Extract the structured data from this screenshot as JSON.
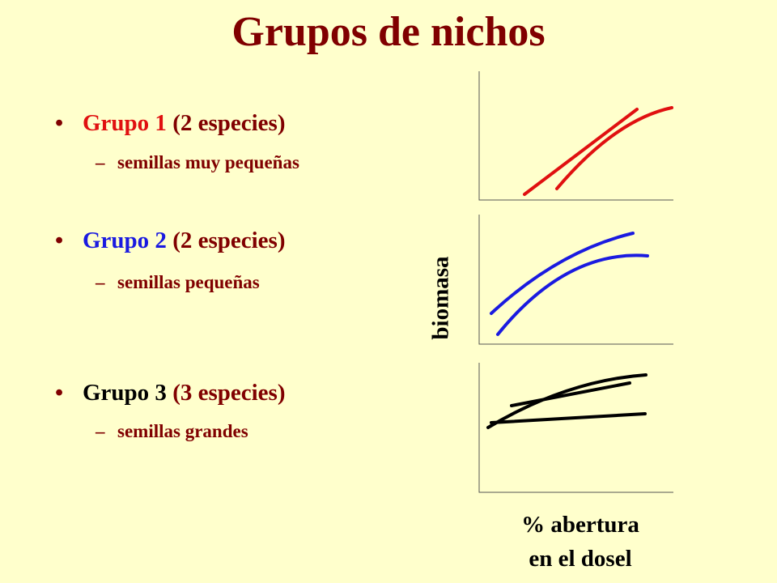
{
  "title": "Grupos de nichos",
  "bullets": [
    {
      "label": "Grupo 1",
      "detail": "(2 especies)",
      "sub": "semillas muy pequeñas"
    },
    {
      "label": "Grupo 2",
      "detail": "(2 especies)",
      "sub": "semillas pequeñas"
    },
    {
      "label": "Grupo 3",
      "detail": "(3 especies)",
      "sub": "semillas grandes"
    }
  ],
  "y_label": "biomasa",
  "x_label": [
    "% abertura",
    "en el dosel"
  ]
}
